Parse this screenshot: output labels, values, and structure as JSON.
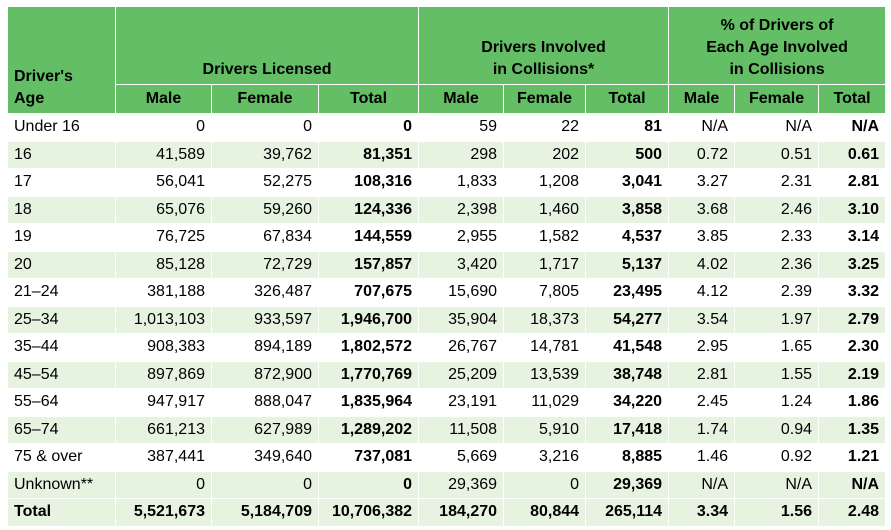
{
  "headers": {
    "age": [
      "Driver's",
      "Age"
    ],
    "licensed": "Drivers Licensed",
    "collisions": [
      "Drivers Involved",
      "in Collisions*"
    ],
    "percent": [
      "% of Drivers of",
      "Each Age Involved",
      "in Collisions"
    ],
    "sub": [
      "Male",
      "Female",
      "Total",
      "Male",
      "Female",
      "Total",
      "Male",
      "Female",
      "Total"
    ]
  },
  "rows": [
    [
      "Under 16",
      "0",
      "0",
      "0",
      "59",
      "22",
      "81",
      "N/A",
      "N/A",
      "N/A"
    ],
    [
      "16",
      "41,589",
      "39,762",
      "81,351",
      "298",
      "202",
      "500",
      "0.72",
      "0.51",
      "0.61"
    ],
    [
      "17",
      "56,041",
      "52,275",
      "108,316",
      "1,833",
      "1,208",
      "3,041",
      "3.27",
      "2.31",
      "2.81"
    ],
    [
      "18",
      "65,076",
      "59,260",
      "124,336",
      "2,398",
      "1,460",
      "3,858",
      "3.68",
      "2.46",
      "3.10"
    ],
    [
      "19",
      "76,725",
      "67,834",
      "144,559",
      "2,955",
      "1,582",
      "4,537",
      "3.85",
      "2.33",
      "3.14"
    ],
    [
      "20",
      "85,128",
      "72,729",
      "157,857",
      "3,420",
      "1,717",
      "5,137",
      "4.02",
      "2.36",
      "3.25"
    ],
    [
      "21–24",
      "381,188",
      "326,487",
      "707,675",
      "15,690",
      "7,805",
      "23,495",
      "4.12",
      "2.39",
      "3.32"
    ],
    [
      "25–34",
      "1,013,103",
      "933,597",
      "1,946,700",
      "35,904",
      "18,373",
      "54,277",
      "3.54",
      "1.97",
      "2.79"
    ],
    [
      "35–44",
      "908,383",
      "894,189",
      "1,802,572",
      "26,767",
      "14,781",
      "41,548",
      "2.95",
      "1.65",
      "2.30"
    ],
    [
      "45–54",
      "897,869",
      "872,900",
      "1,770,769",
      "25,209",
      "13,539",
      "38,748",
      "2.81",
      "1.55",
      "2.19"
    ],
    [
      "55–64",
      "947,917",
      "888,047",
      "1,835,964",
      "23,191",
      "11,029",
      "34,220",
      "2.45",
      "1.24",
      "1.86"
    ],
    [
      "65–74",
      "661,213",
      "627,989",
      "1,289,202",
      "11,508",
      "5,910",
      "17,418",
      "1.74",
      "0.94",
      "1.35"
    ],
    [
      "75 & over",
      "387,441",
      "349,640",
      "737,081",
      "5,669",
      "3,216",
      "8,885",
      "1.46",
      "0.92",
      "1.21"
    ],
    [
      "Unknown**",
      "0",
      "0",
      "0",
      "29,369",
      "0",
      "29,369",
      "N/A",
      "N/A",
      "N/A"
    ]
  ],
  "total": [
    "Total",
    "5,521,673",
    "5,184,709",
    "10,706,382",
    "184,270",
    "80,844",
    "265,114",
    "3.34",
    "1.56",
    "2.48"
  ]
}
